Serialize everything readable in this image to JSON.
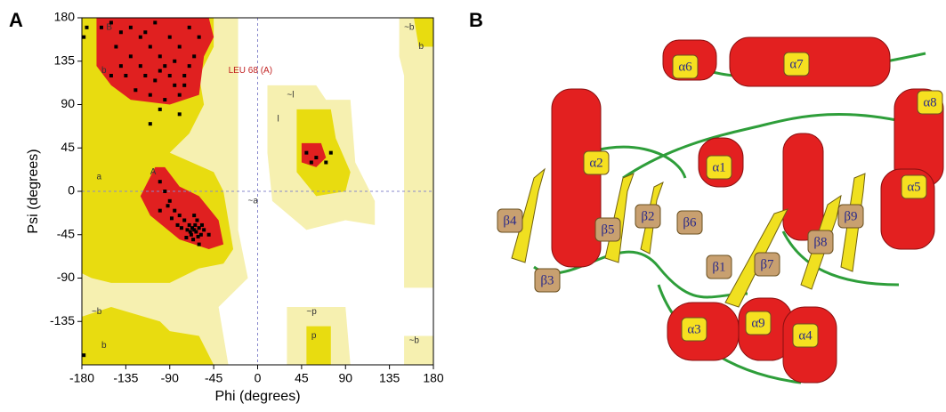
{
  "chart_data": {
    "type": "scatter",
    "panel_label": "A",
    "x_label": "Phi (degrees)",
    "y_label": "Psi (degrees)",
    "xlim": [
      -180,
      180
    ],
    "ylim": [
      -180,
      180
    ],
    "xticks": [
      -180,
      -135,
      -90,
      -45,
      0,
      45,
      90,
      135,
      180
    ],
    "yticks": [
      -135,
      -90,
      -45,
      0,
      45,
      90,
      135,
      180
    ],
    "color": "#000000",
    "x": [
      -160,
      -150,
      -140,
      -130,
      -120,
      -110,
      -100,
      -95,
      -90,
      -85,
      -80,
      -130,
      -140,
      -120,
      -115,
      -105,
      -100,
      -75,
      -70,
      -65,
      -80,
      -90,
      -60,
      -70,
      -145,
      -135,
      -125,
      -110,
      -95,
      -150,
      -175,
      -178,
      -75,
      -85,
      -115,
      -105,
      -65,
      -63,
      -60,
      -68,
      -70,
      -62,
      -58,
      -66,
      -72,
      -75,
      -80,
      -85,
      -90,
      -95,
      -100,
      -60,
      -55,
      -67,
      -64,
      -69,
      -61,
      -57,
      -73,
      -78,
      -82,
      -88,
      -50,
      -100,
      -92,
      -65,
      50,
      55,
      60,
      70,
      75,
      -110,
      -80,
      -100,
      -178
    ],
    "values": [
      170,
      175,
      165,
      170,
      160,
      150,
      140,
      130,
      120,
      110,
      100,
      140,
      130,
      130,
      120,
      115,
      125,
      120,
      130,
      140,
      150,
      160,
      160,
      170,
      150,
      120,
      105,
      100,
      95,
      120,
      170,
      160,
      110,
      135,
      165,
      175,
      -40,
      -42,
      -38,
      -45,
      -35,
      -30,
      -45,
      -50,
      -40,
      -30,
      -25,
      -20,
      -10,
      0,
      10,
      -55,
      -40,
      -38,
      -35,
      -42,
      -47,
      -35,
      -48,
      -38,
      -35,
      -28,
      -45,
      -20,
      -15,
      -25,
      40,
      30,
      35,
      30,
      40,
      70,
      80,
      85,
      -170
    ],
    "annotations": [
      "B",
      "b",
      "LEU 68 (A)",
      "~l",
      "l",
      "a",
      "A",
      "~a",
      "~b",
      "b",
      "~p",
      "p",
      "~b",
      "b",
      "~b"
    ]
  },
  "structure": {
    "panel_label": "B",
    "labels": [
      "α6",
      "α7",
      "α8",
      "α2",
      "α1",
      "α5",
      "β9",
      "β4",
      "β5",
      "β2",
      "β6",
      "β8",
      "β7",
      "β1",
      "β3",
      "α3",
      "α9",
      "α4"
    ]
  }
}
